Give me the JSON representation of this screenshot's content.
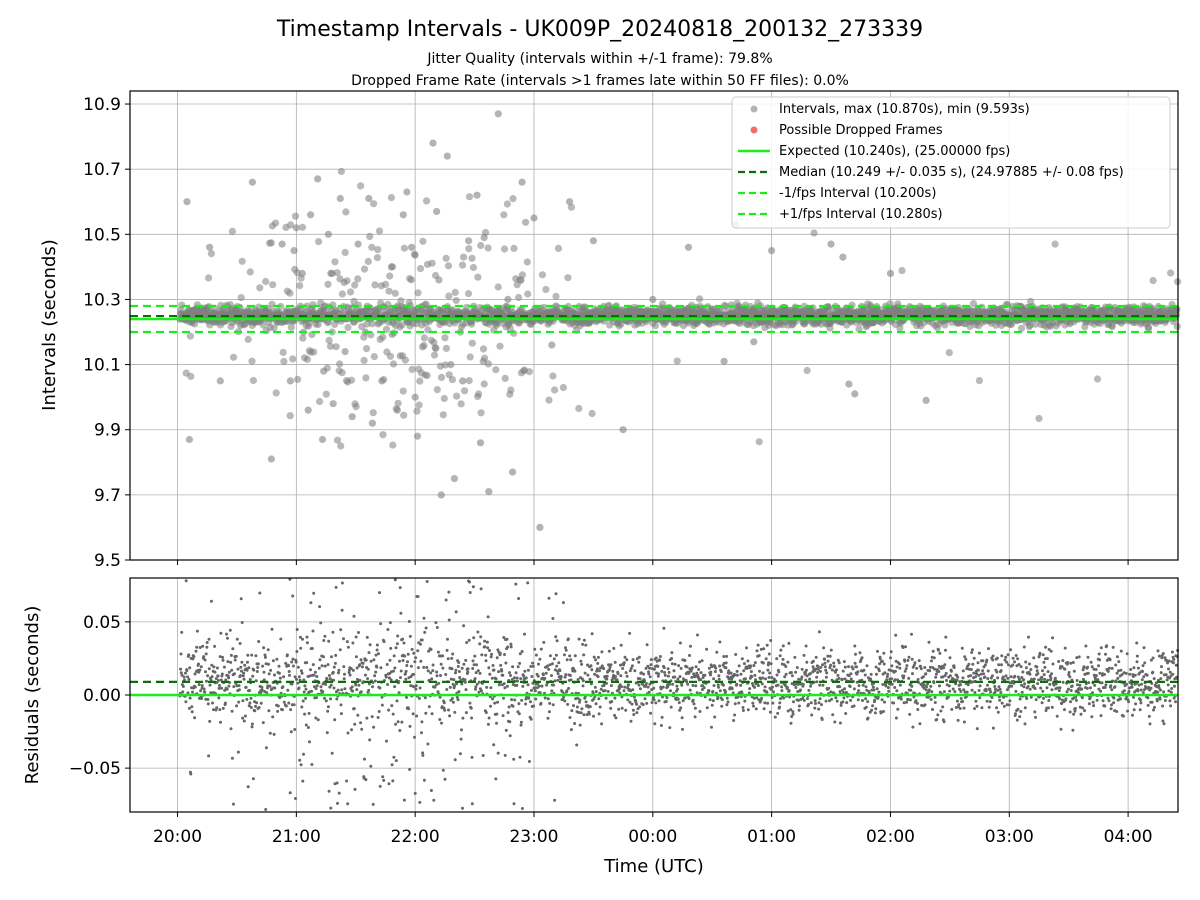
{
  "colors": {
    "points": "#808080",
    "dropped": "#f0545a",
    "expected": "#1aee1a",
    "median": "#0a6e0a",
    "fps_interval": "#1aee1a",
    "grid": "#b0b0b0"
  },
  "chart_data": [
    {
      "type": "scatter",
      "panel": "intervals",
      "title": "Timestamp Intervals - UK009P_20240818_200132_273339",
      "subtitle_lines": [
        "Jitter Quality (intervals within +/-1 frame): 79.8%",
        "Dropped Frame Rate (intervals >1 frames late within 50 FF files): 0.0%"
      ],
      "xlabel": "",
      "ylabel": "Intervals (seconds)",
      "x_unit": "time (UTC), hours since 20:00",
      "xlim": [
        -0.4,
        8.42
      ],
      "ylim": [
        9.5,
        10.94
      ],
      "yticks": [
        9.5,
        9.7,
        9.9,
        10.1,
        10.3,
        10.5,
        10.7,
        10.9
      ],
      "ytick_labels": [
        "9.5",
        "9.7",
        "9.9",
        "10.1",
        "10.3",
        "10.5",
        "10.7",
        "10.9"
      ],
      "grid": true,
      "legend_position": "top-right",
      "legend": [
        {
          "kind": "grey-dot",
          "label": "Intervals, max (10.870s), min (9.593s)"
        },
        {
          "kind": "red-dot",
          "label": "Possible Dropped Frames"
        },
        {
          "kind": "solid-green",
          "label": "Expected (10.240s), (25.00000 fps)"
        },
        {
          "kind": "dashed-darkgreen",
          "label": "Median (10.249 +/- 0.035 s), (24.97885 +/- 0.08 fps)"
        },
        {
          "kind": "dashed-green",
          "label": "-1/fps Interval (10.200s)"
        },
        {
          "kind": "dashed-green",
          "label": "+1/fps Interval (10.280s)"
        }
      ],
      "reference_lines": {
        "expected": 10.24,
        "median": 10.249,
        "minus_fps": 10.2,
        "plus_fps": 10.28
      },
      "stats": {
        "max": 10.87,
        "min": 9.593,
        "n_intervals": 2850
      },
      "series": [
        {
          "name": "Intervals, max (10.870s), min (9.593s)",
          "note": "approx. 2850 intervals from 20:01 to 04:25 UTC, every ~10.24 s; dense band 10.20-10.30 s, wide scatter 20:00-23:30",
          "x": [
            0.08,
            0.1,
            0.27,
            0.36,
            0.53,
            0.63,
            0.79,
            0.88,
            0.95,
            0.98,
            1.0,
            1.05,
            1.1,
            1.12,
            1.18,
            1.22,
            1.23,
            1.27,
            1.3,
            1.31,
            1.37,
            1.41,
            1.47,
            1.52,
            1.58,
            1.61,
            1.64,
            1.72,
            1.8,
            1.85,
            1.9,
            1.93,
            1.97,
            2.0,
            2.02,
            2.08,
            2.15,
            2.18,
            2.2,
            2.22,
            2.27,
            2.3,
            2.33,
            2.4,
            2.45,
            2.52,
            2.55,
            2.58,
            2.62,
            2.7,
            2.78,
            2.82,
            2.9,
            3.0,
            3.05,
            3.15,
            3.3,
            3.5,
            3.75,
            4.0,
            4.3,
            4.6,
            4.7,
            4.85,
            5.0,
            5.5,
            5.6,
            5.65,
            5.7,
            6.0,
            6.3
          ],
          "y": [
            10.6,
            9.87,
            10.46,
            10.05,
            10.22,
            10.66,
            9.81,
            10.47,
            10.05,
            10.45,
            10.52,
            10.38,
            9.96,
            10.56,
            10.67,
            9.87,
            10.08,
            10.5,
            10.38,
            9.98,
            10.61,
            10.14,
            9.94,
            10.47,
            10.2,
            10.61,
            9.92,
            10.05,
            10.4,
            9.96,
            10.56,
            10.63,
            10.46,
            10.0,
            9.88,
            10.26,
            10.78,
            10.57,
            10.36,
            9.7,
            10.74,
            10.1,
            9.75,
            10.05,
            10.48,
            10.62,
            9.86,
            10.49,
            9.71,
            10.87,
            10.3,
            9.77,
            10.66,
            10.55,
            9.6,
            10.16,
            10.6,
            10.48,
            9.9,
            10.3,
            10.46,
            10.11,
            10.53,
            10.17,
            10.45,
            10.47,
            10.43,
            10.04,
            10.01,
            10.38,
            9.99
          ]
        },
        {
          "name": "Possible Dropped Frames",
          "x": [],
          "y": []
        }
      ]
    },
    {
      "type": "scatter",
      "panel": "residuals",
      "xlabel": "Time (UTC)",
      "ylabel": "Residuals (seconds)",
      "x_unit": "time (UTC), hours since 20:00",
      "xlim": [
        -0.4,
        8.42
      ],
      "ylim": [
        -0.08,
        0.08
      ],
      "xticks": [
        0,
        1,
        2,
        3,
        4,
        5,
        6,
        7,
        8
      ],
      "xtick_labels": [
        "20:00",
        "21:00",
        "22:00",
        "23:00",
        "00:00",
        "01:00",
        "02:00",
        "03:00",
        "04:00"
      ],
      "yticks": [
        -0.05,
        0.0,
        0.05
      ],
      "ytick_labels": [
        "−0.05",
        "0.00",
        "0.05"
      ],
      "grid": true,
      "reference_lines": {
        "zero": 0.0,
        "median_offset": 0.009
      },
      "series": [
        {
          "name": "",
          "note": "residuals of ~2850 intervals, mostly between -0.03 and +0.04 s, wider spread 20:00-23:30",
          "x": [
            0.0,
            0.5,
            1.0,
            1.5,
            2.0,
            2.5,
            3.0,
            3.5,
            4.0,
            4.5,
            5.0,
            5.5,
            6.0,
            6.5,
            7.0,
            7.5,
            8.0
          ],
          "y": [
            0.01,
            0.012,
            0.008,
            0.01,
            0.009,
            0.011,
            0.008,
            0.01,
            0.009,
            0.01,
            0.009,
            0.008,
            0.01,
            0.009,
            0.01,
            0.009,
            0.01
          ]
        }
      ]
    }
  ]
}
